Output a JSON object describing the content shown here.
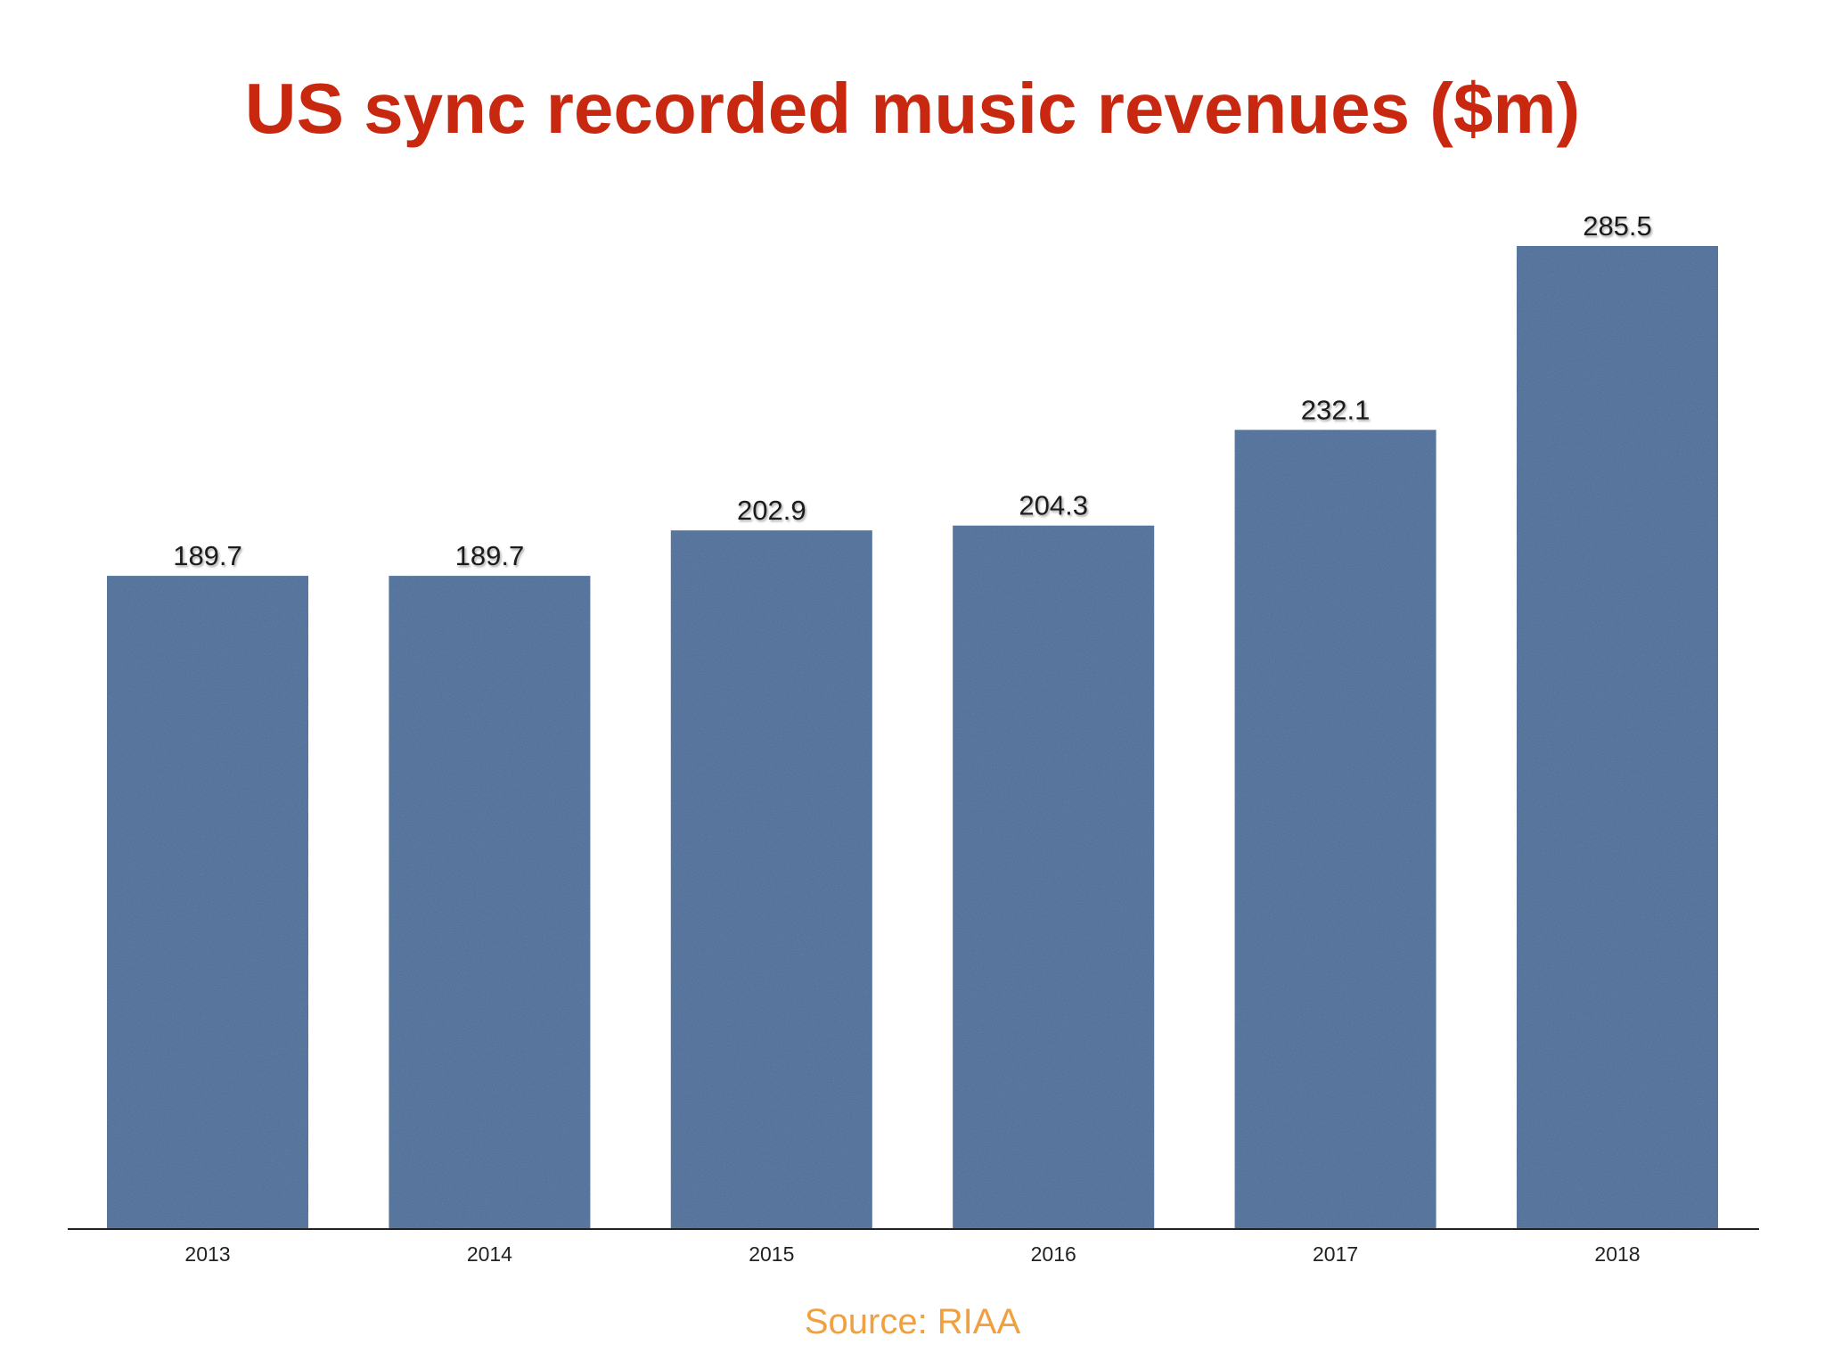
{
  "colors": {
    "title": "#c8280f",
    "bar": "#4a6a96",
    "source": "#f0a040",
    "axis": "#222222"
  },
  "chart_data": {
    "type": "bar",
    "title": "US sync recorded music revenues ($m)",
    "xlabel": "",
    "ylabel": "",
    "categories": [
      "2013",
      "2014",
      "2015",
      "2016",
      "2017",
      "2018"
    ],
    "values": [
      189.7,
      189.7,
      202.9,
      204.3,
      232.1,
      285.5
    ],
    "value_labels": [
      "189.7",
      "189.7",
      "202.9",
      "204.3",
      "232.1",
      "285.5"
    ],
    "ylim": [
      0,
      300
    ],
    "grid": false,
    "legend": "none",
    "source": "Source: RIAA"
  }
}
